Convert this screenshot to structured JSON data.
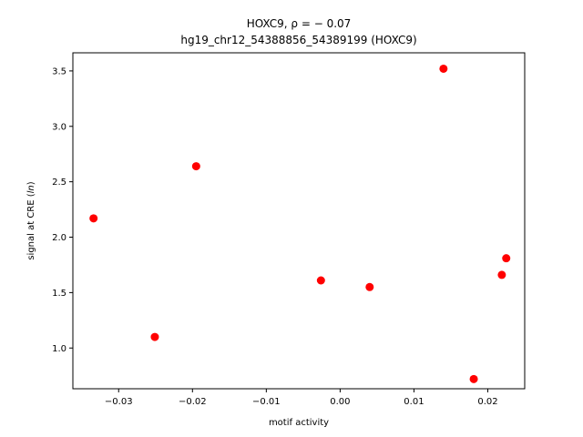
{
  "chart_data": {
    "type": "scatter",
    "title_line1": "HOXC9, ρ = − 0.07",
    "title_line2": "hg19_chr12_54388856_54389199 (HOXC9)",
    "xlabel": "motif activity",
    "ylabel_prefix": "signal at CRE (",
    "ylabel_italic": "ln",
    "ylabel_suffix": ")",
    "xlim": [
      -0.0362,
      0.025
    ],
    "ylim": [
      0.6325,
      3.6635
    ],
    "xticks": [
      -0.03,
      -0.02,
      -0.01,
      0.0,
      0.01,
      0.02
    ],
    "xtick_labels": [
      "−0.03",
      "−0.02",
      "−0.01",
      "0.00",
      "0.01",
      "0.02"
    ],
    "yticks": [
      1.0,
      1.5,
      2.0,
      2.5,
      3.0,
      3.5
    ],
    "ytick_labels": [
      "1.0",
      "1.5",
      "2.0",
      "2.5",
      "3.0",
      "3.5"
    ],
    "marker_color": "#ff0000",
    "points": [
      {
        "x": -0.0334,
        "y": 2.17
      },
      {
        "x": -0.0251,
        "y": 1.1
      },
      {
        "x": -0.0195,
        "y": 2.64
      },
      {
        "x": -0.0026,
        "y": 1.61
      },
      {
        "x": 0.004,
        "y": 1.55
      },
      {
        "x": 0.014,
        "y": 3.52
      },
      {
        "x": 0.0181,
        "y": 0.72
      },
      {
        "x": 0.0219,
        "y": 1.66
      },
      {
        "x": 0.0225,
        "y": 1.81
      }
    ]
  }
}
